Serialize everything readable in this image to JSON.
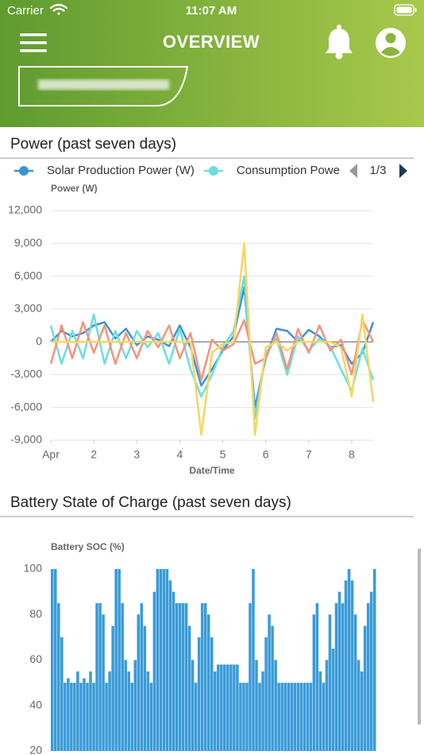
{
  "status_bar": {
    "carrier": "Carrier",
    "time": "11:07 AM"
  },
  "header": {
    "title": "OVERVIEW"
  },
  "chart_data": [
    {
      "type": "line",
      "title": "Power (past seven days)",
      "y_label": "Power (W)",
      "x_label": "Date/Time",
      "pager": "1/3",
      "x": [
        1,
        1.25,
        1.5,
        1.75,
        2,
        2.25,
        2.5,
        2.75,
        3,
        3.25,
        3.5,
        3.75,
        4,
        4.25,
        4.5,
        4.75,
        5,
        5.25,
        5.5,
        5.75,
        6,
        6.25,
        6.5,
        6.75,
        7,
        7.25,
        7.5,
        7.75,
        8,
        8.25,
        8.5
      ],
      "series": [
        {
          "name": "Solar Production Power (W)",
          "color": "#3b93d4",
          "values": [
            0,
            1000,
            500,
            800,
            1500,
            1800,
            300,
            1200,
            -300,
            500,
            200,
            -400,
            1500,
            -500,
            -4000,
            -2500,
            -800,
            500,
            5000,
            -6000,
            -1500,
            1200,
            1000,
            0,
            1100,
            500,
            -500,
            -300,
            -2000,
            -1000,
            1800
          ]
        },
        {
          "name": "Consumption Power (W)",
          "color": "#6cdde2",
          "values": [
            1500,
            -2000,
            1000,
            -1500,
            2500,
            -2000,
            1000,
            -1500,
            1000,
            -500,
            800,
            -2000,
            1200,
            -2500,
            -5000,
            -3000,
            -500,
            1000,
            6000,
            -7000,
            -1000,
            300,
            -3000,
            500,
            -800,
            300,
            -400,
            -2500,
            -4500,
            -600,
            -3500
          ]
        },
        {
          "color": "#f3947b",
          "values": [
            -2000,
            1500,
            -1500,
            1800,
            -1000,
            1500,
            -2000,
            800,
            -1500,
            1000,
            -500,
            1500,
            -1500,
            800,
            -3500,
            200,
            -800,
            -200,
            2000,
            -2000,
            -1500,
            800,
            -2500,
            1200,
            -1000,
            1500,
            -800,
            200,
            -3000,
            2000,
            0
          ]
        },
        {
          "color": "#f6d660",
          "values": [
            0,
            0,
            0,
            0,
            0,
            0,
            0,
            0,
            0,
            0,
            0,
            0,
            0,
            0,
            -8500,
            -1000,
            -200,
            0,
            9000,
            -8500,
            -500,
            0,
            -800,
            0,
            0,
            0,
            0,
            -500,
            -5000,
            2500,
            -5500
          ]
        }
      ],
      "xlim": [
        1,
        8.5
      ],
      "xticks": [
        {
          "value": 1,
          "label": "Apr"
        },
        2,
        3,
        4,
        5,
        6,
        7,
        8
      ],
      "ylim": [
        -9000,
        12000
      ],
      "yticks": [
        {
          "value": 12000,
          "label": "12,000"
        },
        {
          "value": 9000,
          "label": "9,000"
        },
        {
          "value": 6000,
          "label": "6,000"
        },
        {
          "value": 3000,
          "label": "3,000"
        },
        0,
        {
          "value": -3000,
          "label": "-3,000"
        },
        {
          "value": -6000,
          "label": "-6,000"
        },
        {
          "value": -9000,
          "label": "-9,000"
        }
      ],
      "grid": true
    },
    {
      "type": "bar",
      "title": "Battery State of Charge (past seven days)",
      "y_label": "Battery SOC (%)",
      "color": "#3a9bd8",
      "values": [
        100,
        100,
        85,
        70,
        50,
        52,
        50,
        50,
        55,
        50,
        52,
        50,
        55,
        50,
        85,
        85,
        80,
        50,
        55,
        75,
        100,
        100,
        85,
        60,
        55,
        50,
        60,
        80,
        85,
        75,
        55,
        50,
        90,
        100,
        100,
        100,
        100,
        95,
        90,
        85,
        85,
        85,
        85,
        75,
        60,
        50,
        70,
        85,
        85,
        80,
        70,
        55,
        58,
        58,
        58,
        58,
        58,
        58,
        58,
        50,
        50,
        50,
        85,
        100,
        60,
        50,
        55,
        70,
        80,
        75,
        60,
        50,
        50,
        50,
        50,
        50,
        50,
        50,
        50,
        50,
        50,
        50,
        80,
        85,
        55,
        50,
        60,
        80,
        65,
        85,
        90,
        85,
        95,
        100,
        95,
        80,
        60,
        55,
        75,
        85,
        90,
        100
      ],
      "ylim": [
        20,
        100
      ],
      "yticks": [
        100,
        80,
        60,
        40,
        20
      ],
      "grid": false
    }
  ]
}
